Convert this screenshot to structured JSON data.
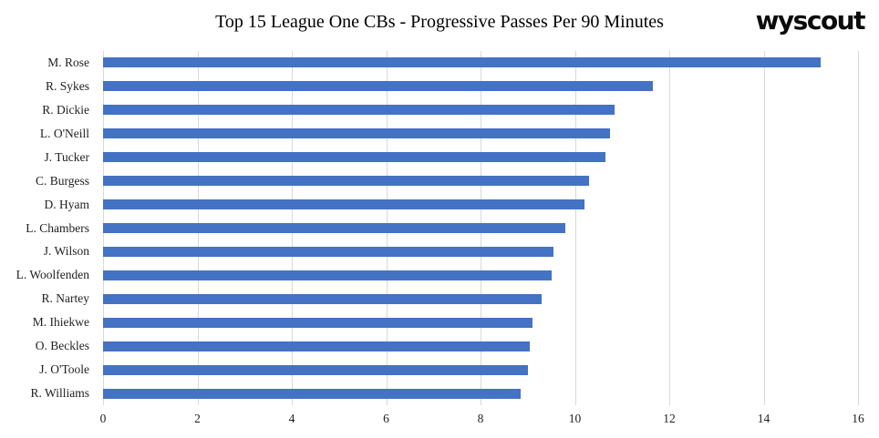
{
  "branding": {
    "logo_text": "wyscout"
  },
  "chart_data": {
    "type": "bar",
    "orientation": "horizontal",
    "title": "Top 15 League One CBs - Progressive Passes Per 90 Minutes",
    "categories": [
      "M. Rose",
      "R. Sykes",
      "R. Dickie",
      "L. O'Neill",
      "J. Tucker",
      "C. Burgess",
      "D. Hyam",
      "L. Chambers",
      "J. Wilson",
      "L. Woolfenden",
      "R. Nartey",
      "M. Ihiekwe",
      "O. Beckles",
      "J. O'Toole",
      "R. Williams"
    ],
    "values": [
      15.2,
      11.65,
      10.85,
      10.75,
      10.65,
      10.3,
      10.2,
      9.8,
      9.55,
      9.5,
      9.3,
      9.1,
      9.05,
      9.0,
      8.85
    ],
    "xlabel": "",
    "ylabel": "",
    "xlim": [
      0,
      16
    ],
    "xticks": [
      0,
      2,
      4,
      6,
      8,
      10,
      12,
      14,
      16
    ],
    "grid": "vertical",
    "legend": "none",
    "bar_color": "#4472C4",
    "gridline_color": "#D9D9D9"
  }
}
